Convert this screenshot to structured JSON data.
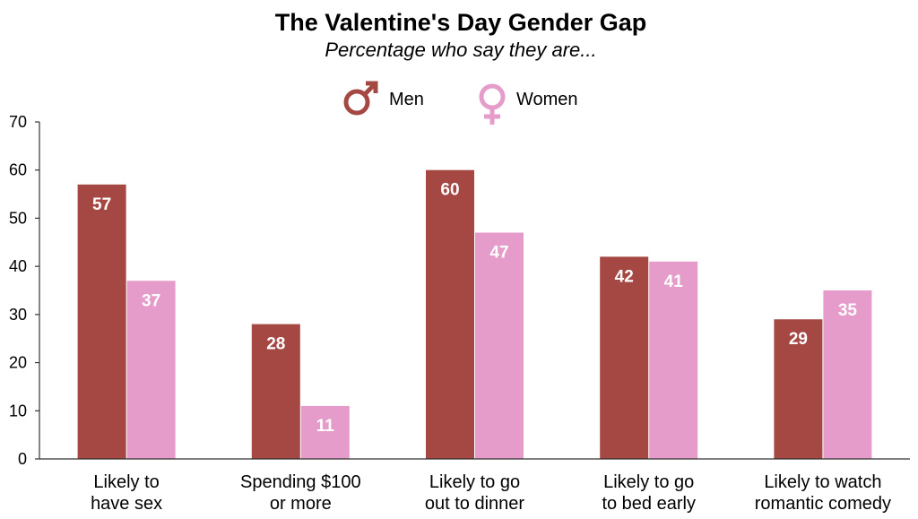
{
  "colors": {
    "men": "#a54843",
    "women": "#e59ccb"
  },
  "legend": [
    {
      "label": "Men",
      "icon": "male-symbol-icon"
    },
    {
      "label": "Women",
      "icon": "female-symbol-icon"
    }
  ],
  "chart_data": {
    "type": "bar",
    "title": "The Valentine's Day Gender Gap",
    "subtitle": "Percentage who say they are...",
    "categories": [
      [
        "Likely to",
        "have sex"
      ],
      [
        "Spending $100",
        "or more"
      ],
      [
        "Likely to go",
        "out to dinner"
      ],
      [
        "Likely to go",
        "to bed early"
      ],
      [
        "Likely to watch",
        "romantic comedy"
      ]
    ],
    "series": [
      {
        "name": "Men",
        "values": [
          57,
          28,
          60,
          42,
          29
        ]
      },
      {
        "name": "Women",
        "values": [
          37,
          11,
          47,
          41,
          35
        ]
      }
    ],
    "yticks": [
      0,
      10,
      20,
      30,
      40,
      50,
      60,
      70
    ],
    "ylim": [
      0,
      70
    ],
    "grid": false,
    "legend_position": "top-center",
    "data_labels": true
  }
}
